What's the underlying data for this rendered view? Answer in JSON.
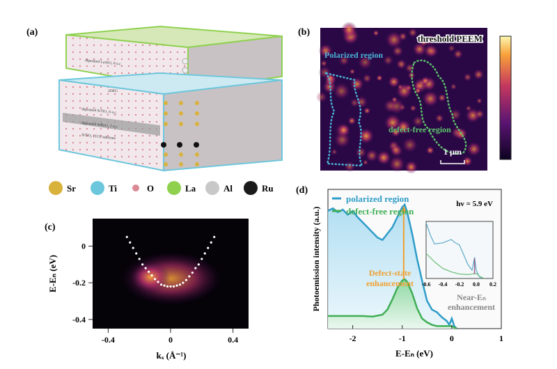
{
  "panel_a": {
    "label": "(a)",
    "layer_labels": [
      "deposited LaAlO₃ 6 u.c.",
      "2DEG",
      "deposited SrTiO₃ 6 u.c.",
      "deposited SrRuO₃ 2 u.c.",
      "SrTiO₃ (111) substrate"
    ],
    "legend": [
      {
        "label": "Sr",
        "color": "#d9b23c"
      },
      {
        "label": "Ti",
        "color": "#6cc7dc"
      },
      {
        "label": "O",
        "color": "#d98a96"
      },
      {
        "label": "La",
        "color": "#8fd14f"
      },
      {
        "label": "Al",
        "color": "#c8c8c8"
      },
      {
        "label": "Ru",
        "color": "#1a1a1a"
      }
    ]
  },
  "panel_b": {
    "label": "(b)",
    "title": "threshold PEEM",
    "region1": "Polarized region",
    "region2": "defect-free region",
    "scalebar": "1 μm",
    "colors": {
      "region1": "#4ab3d6",
      "region2": "#5cc46a"
    }
  },
  "chart_data": [
    {
      "panel": "(c)",
      "type": "heatmap",
      "xlabel": "kₓ (Å⁻¹)",
      "ylabel": "E-Eₙ (eV)",
      "xlim": [
        -0.5,
        0.5
      ],
      "ylim": [
        -0.45,
        0.15
      ],
      "xticks": [
        "-0.4",
        "0",
        "0.4"
      ],
      "yticks": [
        "0",
        "-0.2",
        "-0.4"
      ],
      "dispersion_fit": {
        "x": [
          -0.28,
          -0.26,
          -0.24,
          -0.22,
          -0.2,
          -0.18,
          -0.16,
          -0.14,
          -0.12,
          -0.1,
          -0.08,
          -0.06,
          -0.04,
          -0.02,
          0,
          0.02,
          0.04,
          0.06,
          0.08,
          0.1,
          0.12,
          0.14,
          0.16,
          0.18,
          0.2,
          0.22,
          0.24,
          0.26,
          0.28
        ],
        "y": [
          0.05,
          0.02,
          -0.01,
          -0.04,
          -0.07,
          -0.1,
          -0.12,
          -0.14,
          -0.16,
          -0.18,
          -0.195,
          -0.21,
          -0.215,
          -0.22,
          -0.22,
          -0.22,
          -0.215,
          -0.21,
          -0.2,
          -0.185,
          -0.165,
          -0.145,
          -0.12,
          -0.1,
          -0.07,
          -0.04,
          -0.01,
          0.02,
          0.05
        ]
      }
    },
    {
      "panel": "(d)",
      "type": "line",
      "xlabel": "E-Eₙ (eV)",
      "ylabel": "Photoemission intensity (a.u.)",
      "xlim": [
        -2.5,
        1
      ],
      "ylim": [
        0,
        1.1
      ],
      "xticks": [
        "-2",
        "-1",
        "0",
        "1"
      ],
      "annotation_hv": "hv = 5.9 eV",
      "annotation_defect": [
        "Defect-state",
        "enhancement"
      ],
      "annotation_nearEF": [
        "Near-Eₙ",
        "enhancement"
      ],
      "series": [
        {
          "name": "polarized region",
          "color": "#2e9cc8",
          "x": [
            -2.5,
            -2.4,
            -2.3,
            -2.2,
            -2.1,
            -2.0,
            -1.9,
            -1.8,
            -1.7,
            -1.6,
            -1.5,
            -1.4,
            -1.3,
            -1.2,
            -1.1,
            -1.0,
            -0.95,
            -0.9,
            -0.8,
            -0.7,
            -0.6,
            -0.5,
            -0.4,
            -0.3,
            -0.2,
            -0.1,
            -0.05,
            0,
            0.05,
            0.1
          ],
          "y": [
            0.93,
            0.95,
            0.92,
            0.94,
            0.9,
            0.93,
            0.88,
            0.84,
            0.8,
            0.76,
            0.72,
            0.7,
            0.75,
            0.8,
            0.88,
            0.96,
            0.98,
            0.92,
            0.75,
            0.55,
            0.38,
            0.22,
            0.15,
            0.13,
            0.09,
            0.06,
            0.03,
            0.08,
            0.02,
            0
          ]
        },
        {
          "name": "defect-free region",
          "color": "#3fae55",
          "x": [
            -2.5,
            -2.2,
            -2.0,
            -1.8,
            -1.6,
            -1.4,
            -1.3,
            -1.2,
            -1.1,
            -1.0,
            -0.95,
            -0.9,
            -0.8,
            -0.7,
            -0.6,
            -0.5,
            -0.4,
            -0.3,
            -0.2,
            -0.1,
            0,
            0.1
          ],
          "y": [
            0.1,
            0.1,
            0.1,
            0.1,
            0.095,
            0.11,
            0.15,
            0.23,
            0.32,
            0.38,
            0.39,
            0.37,
            0.28,
            0.16,
            0.08,
            0.05,
            0.03,
            0.02,
            0.02,
            0.02,
            0.02,
            0
          ]
        }
      ],
      "inset": {
        "xlim": [
          -0.6,
          0.2
        ],
        "xticks": [
          "-0.6",
          "-0.4",
          "-0.2",
          "0.0",
          "0.2"
        ],
        "series": [
          {
            "x": [
              -0.6,
              -0.55,
              -0.5,
              -0.4,
              -0.3,
              -0.25,
              -0.2,
              -0.1,
              -0.05,
              -0.02,
              0,
              0.03,
              0.06
            ],
            "y": [
              1.0,
              0.78,
              0.62,
              0.64,
              0.7,
              0.64,
              0.6,
              0.25,
              0.15,
              0.38,
              0.15,
              0.05,
              0
            ]
          },
          {
            "x": [
              -0.6,
              -0.5,
              -0.4,
              -0.3,
              -0.2,
              -0.1,
              0,
              0.05,
              0.1
            ],
            "y": [
              0.45,
              0.3,
              0.18,
              0.12,
              0.08,
              0.07,
              0.09,
              0.03,
              0
            ]
          }
        ]
      }
    }
  ]
}
